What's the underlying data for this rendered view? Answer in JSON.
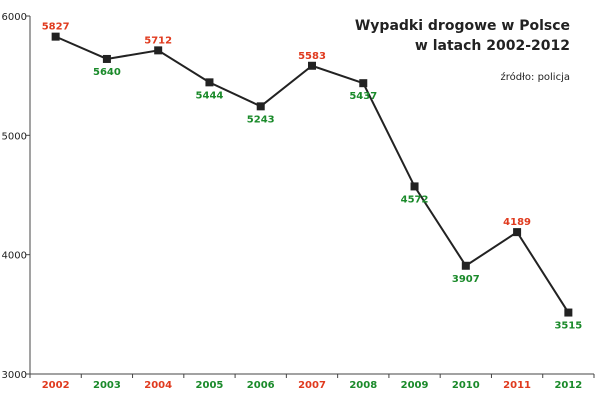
{
  "chart_data": {
    "type": "line",
    "title_line1": "Wypadki drogowe w Polsce",
    "title_line2": "w latach 2002-2012",
    "source": "źródło: policja",
    "xlabel": "",
    "ylabel": "",
    "ylim": [
      3000,
      6000
    ],
    "yticks": [
      3000,
      4000,
      5000,
      6000
    ],
    "grid": false,
    "categories": [
      "2002",
      "2003",
      "2004",
      "2005",
      "2006",
      "2007",
      "2008",
      "2009",
      "2010",
      "2011",
      "2012"
    ],
    "values": [
      5827,
      5640,
      5712,
      5444,
      5243,
      5583,
      5437,
      4572,
      3907,
      4189,
      3515
    ],
    "label_positions": [
      "above",
      "below",
      "above",
      "below",
      "below",
      "above",
      "below",
      "below",
      "below",
      "above",
      "below"
    ],
    "category_colors": [
      "#e03a1e",
      "#1a8a2a",
      "#e03a1e",
      "#1a8a2a",
      "#1a8a2a",
      "#e03a1e",
      "#1a8a2a",
      "#1a8a2a",
      "#1a8a2a",
      "#e03a1e",
      "#1a8a2a"
    ],
    "line_color": "#222222",
    "up_color": "#e03a1e",
    "down_color": "#1a8a2a"
  }
}
